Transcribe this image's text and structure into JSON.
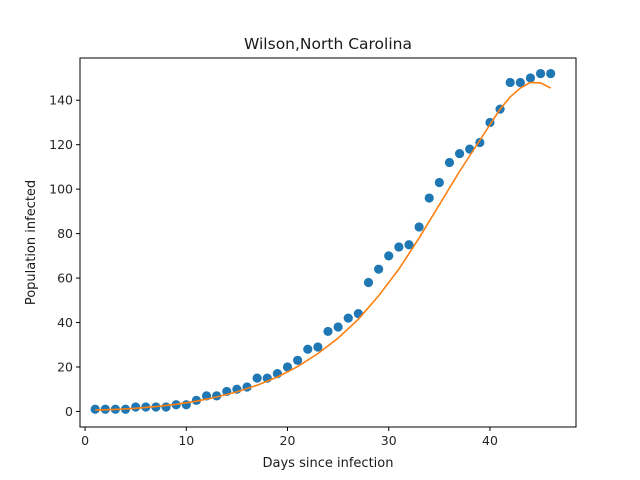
{
  "chart_data": {
    "type": "scatter",
    "title": "Wilson,North Carolina",
    "xlabel": "Days since infection",
    "ylabel": "Population infected",
    "xlim": [
      -0.5,
      48.5
    ],
    "ylim": [
      -7,
      159
    ],
    "xticks": [
      0,
      10,
      20,
      30,
      40
    ],
    "yticks": [
      0,
      20,
      40,
      60,
      80,
      100,
      120,
      140
    ],
    "grid": false,
    "legend": "none",
    "series": [
      {
        "kind": "scatter",
        "color": "#1f77b4",
        "x": [
          1,
          2,
          3,
          4,
          5,
          6,
          7,
          8,
          9,
          10,
          11,
          12,
          13,
          14,
          15,
          16,
          17,
          18,
          19,
          20,
          21,
          22,
          23,
          24,
          25,
          26,
          27,
          28,
          29,
          30,
          31,
          32,
          33,
          34,
          35,
          36,
          37,
          38,
          39,
          40,
          41,
          42,
          43,
          44,
          45,
          46
        ],
        "y": [
          1,
          1,
          1,
          1,
          2,
          2,
          2,
          2,
          3,
          3,
          5,
          7,
          7,
          9,
          10,
          11,
          15,
          15,
          17,
          20,
          23,
          28,
          29,
          36,
          38,
          42,
          44,
          58,
          64,
          70,
          74,
          75,
          83,
          96,
          103,
          112,
          116,
          118,
          121,
          130,
          136,
          148,
          148,
          150,
          152,
          152
        ]
      },
      {
        "kind": "line",
        "color": "#ff7f0e",
        "x": [
          1,
          3,
          5,
          7,
          9,
          11,
          13,
          15,
          17,
          19,
          21,
          23,
          25,
          27,
          29,
          31,
          33,
          35,
          37,
          39,
          40,
          41,
          42,
          43,
          44,
          45,
          46
        ],
        "y": [
          0.6,
          0.9,
          1.4,
          2.2,
          3.2,
          4.6,
          6.5,
          8.8,
          11.8,
          15.5,
          20.2,
          26.0,
          33.0,
          41.5,
          52.0,
          64.0,
          78.0,
          93.0,
          108.0,
          122.0,
          129.0,
          136.0,
          141.5,
          145.5,
          148.0,
          147.8,
          145.5
        ]
      }
    ]
  }
}
